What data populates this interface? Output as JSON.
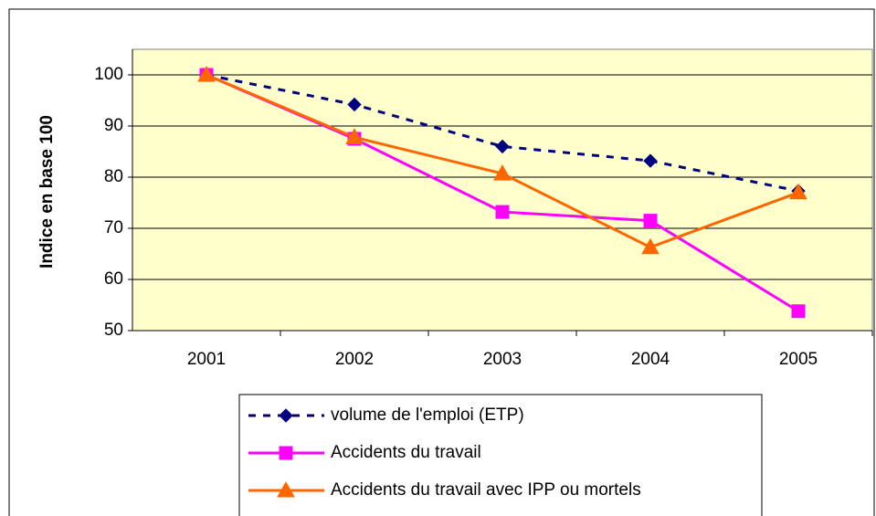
{
  "chart_data": {
    "type": "line",
    "y_label": "Indice en base 100",
    "categories": [
      "2001",
      "2002",
      "2003",
      "2004",
      "2005"
    ],
    "series": [
      {
        "name": "volume de l'emploi (ETP)",
        "color": "#000080",
        "dash": true,
        "marker": "diamond",
        "values": [
          100,
          94.2,
          86,
          83.2,
          77.3
        ]
      },
      {
        "name": "Accidents du travail",
        "color": "#ff00ff",
        "dash": false,
        "marker": "square",
        "values": [
          100,
          87.5,
          73.2,
          71.5,
          53.8
        ]
      },
      {
        "name": "Accidents du travail avec IPP ou mortels",
        "color": "#ff6600",
        "dash": false,
        "marker": "triangle",
        "values": [
          100,
          87.8,
          80.7,
          66.3,
          77
        ]
      }
    ],
    "ylim": [
      50,
      105
    ],
    "yticks": [
      50,
      60,
      70,
      80,
      90,
      100
    ],
    "grid": true,
    "legend": "bottom"
  }
}
